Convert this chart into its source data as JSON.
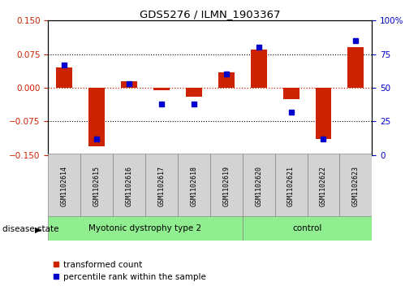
{
  "title": "GDS5276 / ILMN_1903367",
  "samples": [
    "GSM1102614",
    "GSM1102615",
    "GSM1102616",
    "GSM1102617",
    "GSM1102618",
    "GSM1102619",
    "GSM1102620",
    "GSM1102621",
    "GSM1102622",
    "GSM1102623"
  ],
  "red_values": [
    0.045,
    -0.13,
    0.015,
    -0.005,
    -0.02,
    0.035,
    0.085,
    -0.025,
    -0.115,
    0.09
  ],
  "blue_values": [
    0.67,
    0.12,
    0.53,
    0.38,
    0.38,
    0.6,
    0.8,
    0.32,
    0.12,
    0.85
  ],
  "groups": [
    {
      "label": "Myotonic dystrophy type 2",
      "start": 0,
      "end": 6,
      "color": "#90ee90"
    },
    {
      "label": "control",
      "start": 6,
      "end": 10,
      "color": "#90ee90"
    }
  ],
  "ylim_left": [
    -0.15,
    0.15
  ],
  "ylim_right": [
    0,
    100
  ],
  "yticks_left": [
    -0.15,
    -0.075,
    0,
    0.075,
    0.15
  ],
  "yticks_right": [
    0,
    25,
    50,
    75,
    100
  ],
  "red_color": "#cc2200",
  "blue_color": "#0000cc",
  "bar_width": 0.5,
  "background_color": "#ffffff",
  "tick_label_color_left": "#cc2200",
  "tick_label_color_right": "#0000cc",
  "zero_line_color": "#cc2200",
  "legend_red_label": "transformed count",
  "legend_blue_label": "percentile rank within the sample",
  "disease_state_label": "disease state",
  "label_bg_color": "#d3d3d3",
  "group_border_color": "#888888"
}
